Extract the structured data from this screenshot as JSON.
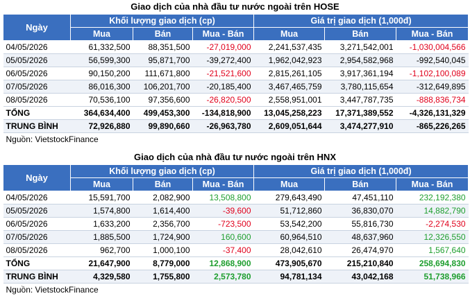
{
  "hose": {
    "title": "Giao dịch của nhà đầu tư nước ngoài trên HOSE",
    "header": {
      "ngay": "Ngày",
      "group_volume": "Khối lượng giao dịch (cp)",
      "group_value": "Giá trị giao dịch (1,000đ)",
      "mua": "Mua",
      "ban": "Bán",
      "mua_ban": "Mua - Bán"
    },
    "rows": [
      [
        "04/05/2026",
        "61,332,500",
        "88,351,500",
        "-27,019,000",
        "2,241,537,435",
        "3,271,542,001",
        "-1,030,004,566"
      ],
      [
        "05/05/2026",
        "56,599,300",
        "95,871,700",
        "-39,272,400",
        "1,962,042,923",
        "2,954,582,968",
        "-992,540,045"
      ],
      [
        "06/05/2026",
        "90,150,200",
        "111,671,800",
        "-21,521,600",
        "2,815,261,105",
        "3,917,361,194",
        "-1,102,100,089"
      ],
      [
        "07/05/2026",
        "86,016,300",
        "106,201,700",
        "-20,185,400",
        "3,467,465,759",
        "3,780,115,654",
        "-312,649,895"
      ],
      [
        "08/05/2026",
        "70,536,100",
        "97,356,600",
        "-26,820,500",
        "2,558,951,001",
        "3,447,787,735",
        "-888,836,734"
      ]
    ],
    "total": [
      "TỔNG",
      "364,634,400",
      "499,453,300",
      "-134,818,900",
      "13,045,258,223",
      "17,371,389,552",
      "-4,326,131,329"
    ],
    "average": [
      "TRUNG BÌNH",
      "72,926,880",
      "99,890,660",
      "-26,963,780",
      "2,609,051,644",
      "3,474,277,910",
      "-865,226,265"
    ],
    "source": "Nguồn: VietstockFinance"
  },
  "hnx": {
    "title": "Giao dịch của nhà đầu tư nước ngoài trên HNX",
    "header": {
      "ngay": "Ngày",
      "group_volume": "Khối lượng giao dịch (cp)",
      "group_value": "Giá trị giao dịch (1,000đ)",
      "mua": "Mua",
      "ban": "Bán",
      "mua_ban": "Mua - Bán"
    },
    "rows": [
      [
        "04/05/2026",
        "15,591,700",
        "2,082,900",
        "13,508,800",
        "279,643,490",
        "47,451,110",
        "232,192,380"
      ],
      [
        "05/05/2026",
        "1,574,800",
        "1,614,400",
        "-39,600",
        "51,712,860",
        "36,830,070",
        "14,882,790"
      ],
      [
        "06/05/2026",
        "1,633,200",
        "2,356,700",
        "-723,500",
        "53,542,200",
        "55,816,730",
        "-2,274,530"
      ],
      [
        "07/05/2026",
        "1,885,500",
        "1,724,900",
        "160,600",
        "60,964,510",
        "48,637,960",
        "12,326,550"
      ],
      [
        "08/05/2026",
        "962,700",
        "1,000,100",
        "-37,400",
        "28,042,610",
        "26,474,970",
        "1,567,640"
      ]
    ],
    "total": [
      "TỔNG",
      "21,647,900",
      "8,779,000",
      "12,868,900",
      "473,905,670",
      "215,210,840",
      "258,694,830"
    ],
    "average": [
      "TRUNG BÌNH",
      "4,329,580",
      "1,755,800",
      "2,573,780",
      "94,781,134",
      "43,042,168",
      "51,738,966"
    ],
    "source": "Nguồn: VietstockFinance"
  },
  "colors": {
    "header_bg": "#3a6fbf",
    "negative": "#e0001b",
    "positive": "#1e9e2e",
    "row_alt": "#eef2f8"
  }
}
